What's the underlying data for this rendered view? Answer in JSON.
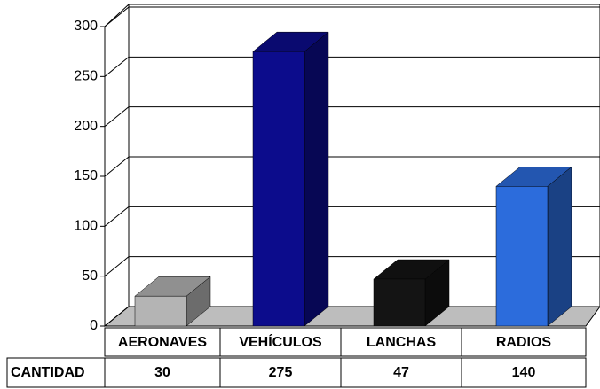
{
  "chart_data": {
    "type": "bar3d",
    "categories": [
      "AERONAVES",
      "VEHÍCULOS",
      "LANCHAS",
      "RADIOS"
    ],
    "series": [
      {
        "name": "CANTIDAD",
        "values": [
          30,
          275,
          47,
          140
        ]
      }
    ],
    "colors": [
      "#b4b4b4",
      "#0c0c8c",
      "#141414",
      "#2c6cdc"
    ],
    "ylim": [
      0,
      300
    ],
    "yticks": [
      0,
      50,
      100,
      150,
      200,
      250,
      300
    ],
    "grid": true
  }
}
